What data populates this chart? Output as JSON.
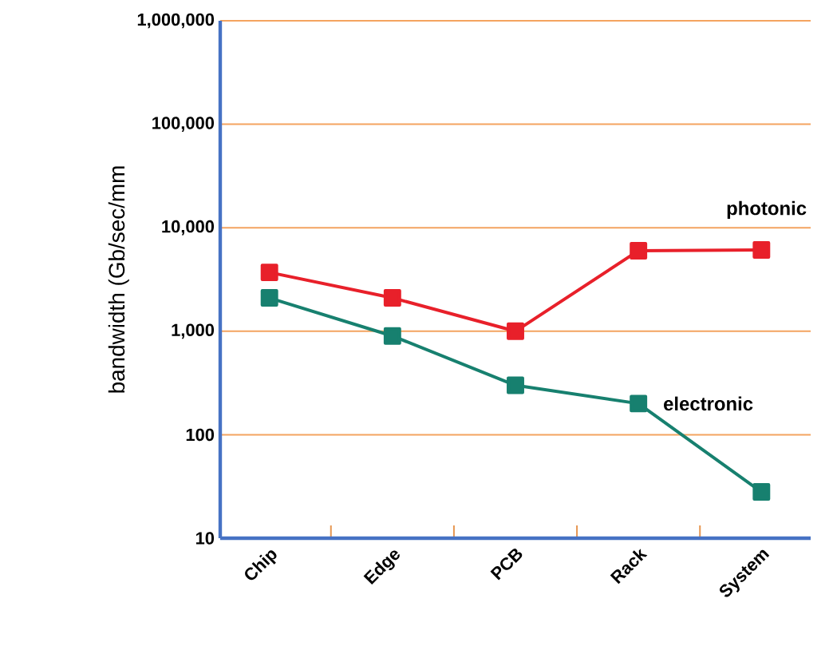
{
  "chart_data": {
    "type": "line",
    "ylabel": "bandwidth (Gb/sec/mm",
    "categories": [
      "Chip",
      "Edge",
      "PCB",
      "Rack",
      "System"
    ],
    "series": [
      {
        "name": "photonic",
        "color": "#e8202a",
        "values": [
          3700,
          2100,
          1000,
          6000,
          6100
        ]
      },
      {
        "name": "electronic",
        "color": "#17806f",
        "values": [
          2100,
          900,
          300,
          200,
          28
        ]
      }
    ],
    "log": "y",
    "ylim": [
      10,
      1000000
    ],
    "yticks": [
      10,
      100,
      {
        "value": 1000,
        "label": "1,000"
      },
      {
        "value": 10000,
        "label": "10,000"
      },
      {
        "value": 100000,
        "label": "100,000"
      },
      {
        "value": 1000000,
        "label": "1,000,000"
      }
    ],
    "grid": "y",
    "legend": false,
    "marker": "square",
    "line_style": "solid"
  }
}
